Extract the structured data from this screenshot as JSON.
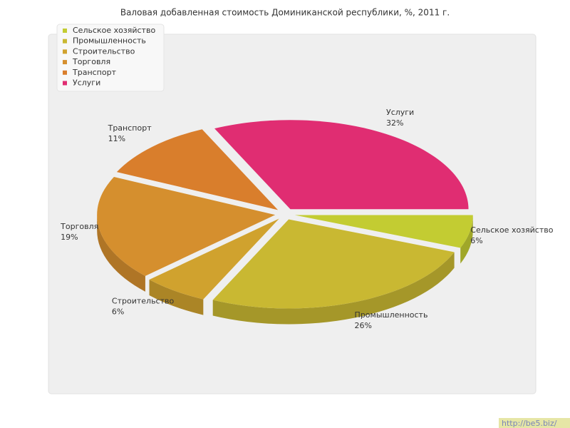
{
  "chart_data": {
    "type": "pie",
    "title": "Валовая добавленная стоимость Доминиканской республики, %, 2011 г.",
    "categories": [
      "Сельское хозяйство",
      "Промышленность",
      "Строительство",
      "Торговля",
      "Транспорт",
      "Услуги"
    ],
    "values": [
      6,
      26,
      6,
      19,
      11,
      32
    ],
    "value_labels": [
      "6%",
      "26%",
      "6%",
      "19%",
      "11%",
      "32%"
    ],
    "colors": [
      "#c3cc32",
      "#c9b832",
      "#d0a22e",
      "#d58f2e",
      "#d97e2c",
      "#e02d72"
    ],
    "legend": "top-left",
    "watermark": "http://be5.biz/"
  }
}
